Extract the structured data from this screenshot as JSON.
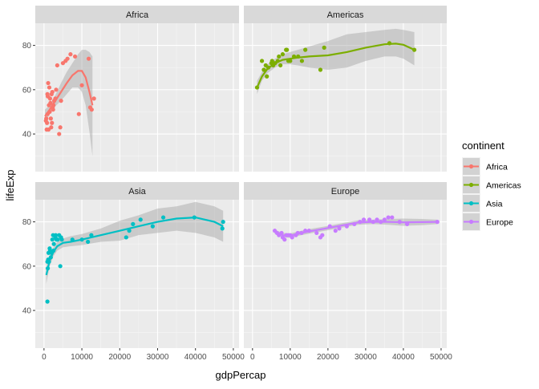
{
  "chart_data": {
    "type": "scatter",
    "title": "",
    "xlabel": "gdpPercap",
    "ylabel": "lifeExp",
    "xlim": [
      -2300,
      51500
    ],
    "ylim": [
      23,
      90
    ],
    "x_ticks": [
      0,
      10000,
      20000,
      30000,
      40000,
      50000
    ],
    "x_tick_labels": [
      "0",
      "10000",
      "20000",
      "30000",
      "40000",
      "50000"
    ],
    "y_ticks": [
      40,
      60,
      80
    ],
    "y_tick_labels": [
      "40",
      "60",
      "80"
    ],
    "grid": true,
    "smoothing": "loess with confidence band",
    "legend": {
      "title": "continent",
      "position": "right",
      "entries": [
        {
          "label": "Africa",
          "color": "#F8766D"
        },
        {
          "label": "Americas",
          "color": "#7CAE00"
        },
        {
          "label": "Asia",
          "color": "#00BFC4"
        },
        {
          "label": "Europe",
          "color": "#C77CFF"
        }
      ]
    },
    "panels": [
      {
        "name": "Africa",
        "color": "#F8766D",
        "points": [
          [
            500,
            46
          ],
          [
            600,
            47
          ],
          [
            700,
            42
          ],
          [
            800,
            45
          ],
          [
            900,
            58
          ],
          [
            950,
            49
          ],
          [
            1000,
            57
          ],
          [
            1100,
            63
          ],
          [
            1200,
            42
          ],
          [
            1300,
            53
          ],
          [
            1400,
            61
          ],
          [
            1500,
            50
          ],
          [
            1600,
            56
          ],
          [
            1700,
            54
          ],
          [
            1800,
            47
          ],
          [
            1900,
            43
          ],
          [
            2000,
            58
          ],
          [
            2100,
            45
          ],
          [
            2200,
            59
          ],
          [
            2300,
            52
          ],
          [
            2400,
            51
          ],
          [
            2500,
            53
          ],
          [
            2700,
            55
          ],
          [
            3000,
            56
          ],
          [
            3200,
            60
          ],
          [
            3500,
            71
          ],
          [
            4000,
            40
          ],
          [
            4300,
            43
          ],
          [
            4500,
            55
          ],
          [
            5000,
            72
          ],
          [
            5700,
            73
          ],
          [
            6200,
            74
          ],
          [
            7000,
            76
          ],
          [
            8200,
            75
          ],
          [
            9200,
            49
          ],
          [
            10000,
            62
          ],
          [
            11800,
            74
          ],
          [
            12200,
            52
          ],
          [
            12600,
            51
          ],
          [
            13200,
            56
          ]
        ],
        "trend": [
          [
            250,
            48
          ],
          [
            1500,
            51
          ],
          [
            3000,
            55
          ],
          [
            4500,
            59
          ],
          [
            6000,
            63
          ],
          [
            7500,
            66.5
          ],
          [
            9000,
            68.5
          ],
          [
            10000,
            68.5
          ],
          [
            11000,
            65.5
          ],
          [
            12000,
            59
          ],
          [
            12800,
            53
          ]
        ],
        "band_upper": [
          [
            250,
            51
          ],
          [
            1500,
            53
          ],
          [
            3000,
            57.5
          ],
          [
            4500,
            63
          ],
          [
            6000,
            68
          ],
          [
            7500,
            72
          ],
          [
            9000,
            76
          ],
          [
            10000,
            78
          ],
          [
            11000,
            78
          ],
          [
            12000,
            77
          ],
          [
            12800,
            75
          ]
        ],
        "band_lower": [
          [
            250,
            45
          ],
          [
            1500,
            49
          ],
          [
            3000,
            52.5
          ],
          [
            4500,
            55
          ],
          [
            6000,
            58
          ],
          [
            7500,
            61
          ],
          [
            9000,
            61
          ],
          [
            10000,
            59
          ],
          [
            11000,
            53
          ],
          [
            12000,
            41
          ],
          [
            12800,
            30
          ]
        ]
      },
      {
        "name": "Americas",
        "color": "#7CAE00",
        "points": [
          [
            1200,
            61
          ],
          [
            2500,
            73
          ],
          [
            3000,
            69
          ],
          [
            3500,
            71
          ],
          [
            3800,
            66
          ],
          [
            4200,
            70
          ],
          [
            5000,
            72
          ],
          [
            5200,
            73
          ],
          [
            5500,
            71
          ],
          [
            6000,
            72
          ],
          [
            6700,
            73
          ],
          [
            7000,
            75
          ],
          [
            7400,
            71
          ],
          [
            8000,
            76
          ],
          [
            8900,
            78
          ],
          [
            9100,
            78
          ],
          [
            9500,
            73
          ],
          [
            10000,
            73
          ],
          [
            11000,
            75
          ],
          [
            12100,
            75
          ],
          [
            13100,
            73
          ],
          [
            14000,
            78
          ],
          [
            18000,
            69
          ],
          [
            19000,
            79
          ],
          [
            36300,
            81
          ],
          [
            42900,
            78
          ]
        ],
        "trend": [
          [
            1200,
            61
          ],
          [
            2500,
            66
          ],
          [
            4000,
            69.5
          ],
          [
            6000,
            72
          ],
          [
            8000,
            73.5
          ],
          [
            10000,
            74
          ],
          [
            12000,
            74.5
          ],
          [
            15000,
            75
          ],
          [
            20000,
            75.5
          ],
          [
            25000,
            77
          ],
          [
            30000,
            79
          ],
          [
            35000,
            80.5
          ],
          [
            38000,
            80.8
          ],
          [
            40000,
            80.3
          ],
          [
            42900,
            78
          ]
        ],
        "band_upper": [
          [
            1200,
            64
          ],
          [
            2500,
            68
          ],
          [
            4000,
            71.5
          ],
          [
            6000,
            74
          ],
          [
            8000,
            76
          ],
          [
            10000,
            77
          ],
          [
            12000,
            78
          ],
          [
            15000,
            79.5
          ],
          [
            20000,
            82
          ],
          [
            25000,
            85
          ],
          [
            30000,
            86
          ],
          [
            35000,
            87
          ],
          [
            38000,
            87.5
          ],
          [
            40000,
            87
          ],
          [
            42900,
            86
          ]
        ],
        "band_lower": [
          [
            1200,
            58
          ],
          [
            2500,
            64
          ],
          [
            4000,
            67.5
          ],
          [
            6000,
            70
          ],
          [
            8000,
            71.5
          ],
          [
            10000,
            71.5
          ],
          [
            12000,
            71
          ],
          [
            15000,
            70
          ],
          [
            20000,
            69
          ],
          [
            25000,
            70
          ],
          [
            30000,
            73
          ],
          [
            35000,
            75
          ],
          [
            38000,
            75
          ],
          [
            40000,
            74
          ],
          [
            42900,
            71
          ]
        ]
      },
      {
        "name": "Asia",
        "color": "#00BFC4",
        "points": [
          [
            900,
            44
          ],
          [
            900,
            62
          ],
          [
            1000,
            59
          ],
          [
            1100,
            63
          ],
          [
            1200,
            66
          ],
          [
            1300,
            62
          ],
          [
            1500,
            68
          ],
          [
            1600,
            67
          ],
          [
            1800,
            64
          ],
          [
            2000,
            66
          ],
          [
            2200,
            72
          ],
          [
            2400,
            74
          ],
          [
            2500,
            67
          ],
          [
            2600,
            70
          ],
          [
            3000,
            73
          ],
          [
            3100,
            74
          ],
          [
            3300,
            72
          ],
          [
            3600,
            72
          ],
          [
            4000,
            74
          ],
          [
            4300,
            60
          ],
          [
            4500,
            73
          ],
          [
            4700,
            72
          ],
          [
            7500,
            72
          ],
          [
            10000,
            72
          ],
          [
            11600,
            71
          ],
          [
            12500,
            74
          ],
          [
            21700,
            73
          ],
          [
            22500,
            76
          ],
          [
            23500,
            79
          ],
          [
            25500,
            81
          ],
          [
            28700,
            78
          ],
          [
            31500,
            82
          ],
          [
            39700,
            82
          ],
          [
            47100,
            77
          ],
          [
            47300,
            80
          ]
        ],
        "trend": [
          [
            600,
            56
          ],
          [
            1500,
            62.5
          ],
          [
            2500,
            66.5
          ],
          [
            3500,
            69
          ],
          [
            5000,
            70.5
          ],
          [
            7000,
            71
          ],
          [
            10000,
            72
          ],
          [
            15000,
            74
          ],
          [
            20000,
            76
          ],
          [
            25000,
            78
          ],
          [
            30000,
            80
          ],
          [
            35000,
            81.5
          ],
          [
            40000,
            82
          ],
          [
            45000,
            80
          ],
          [
            47300,
            78
          ]
        ],
        "band_upper": [
          [
            600,
            60
          ],
          [
            1500,
            65
          ],
          [
            2500,
            68.5
          ],
          [
            3500,
            71
          ],
          [
            5000,
            72.5
          ],
          [
            7000,
            73.5
          ],
          [
            10000,
            74.5
          ],
          [
            15000,
            77
          ],
          [
            20000,
            80.5
          ],
          [
            25000,
            83
          ],
          [
            30000,
            86
          ],
          [
            35000,
            87
          ],
          [
            40000,
            89
          ],
          [
            45000,
            87
          ],
          [
            47300,
            85
          ]
        ],
        "band_lower": [
          [
            600,
            52
          ],
          [
            1500,
            60
          ],
          [
            2500,
            64.5
          ],
          [
            3500,
            67
          ],
          [
            5000,
            68.5
          ],
          [
            7000,
            69
          ],
          [
            10000,
            69.5
          ],
          [
            15000,
            71
          ],
          [
            20000,
            71.5
          ],
          [
            25000,
            74
          ],
          [
            30000,
            75
          ],
          [
            35000,
            76
          ],
          [
            40000,
            75
          ],
          [
            45000,
            73
          ],
          [
            47300,
            71
          ]
        ]
      },
      {
        "name": "Europe",
        "color": "#C77CFF",
        "points": [
          [
            5900,
            76
          ],
          [
            6500,
            75
          ],
          [
            7000,
            74
          ],
          [
            7700,
            75
          ],
          [
            8000,
            73
          ],
          [
            8500,
            72
          ],
          [
            9000,
            74
          ],
          [
            9500,
            74
          ],
          [
            10000,
            74
          ],
          [
            10500,
            73
          ],
          [
            11500,
            74
          ],
          [
            12000,
            75
          ],
          [
            13000,
            75
          ],
          [
            14000,
            76
          ],
          [
            15000,
            76
          ],
          [
            17000,
            75
          ],
          [
            18000,
            73
          ],
          [
            18500,
            74
          ],
          [
            20500,
            78
          ],
          [
            22000,
            76
          ],
          [
            23000,
            77
          ],
          [
            25000,
            78
          ],
          [
            27000,
            79
          ],
          [
            28500,
            80
          ],
          [
            29500,
            81
          ],
          [
            31000,
            81
          ],
          [
            32000,
            80
          ],
          [
            33000,
            81
          ],
          [
            34000,
            80
          ],
          [
            35000,
            81
          ],
          [
            36000,
            82
          ],
          [
            37000,
            82
          ],
          [
            39000,
            80
          ],
          [
            41000,
            79
          ],
          [
            49000,
            80
          ]
        ],
        "trend": [
          [
            5900,
            75.5
          ],
          [
            8000,
            74
          ],
          [
            10000,
            73.8
          ],
          [
            13000,
            75
          ],
          [
            16000,
            76
          ],
          [
            20000,
            77.2
          ],
          [
            24000,
            78.5
          ],
          [
            28000,
            79.7
          ],
          [
            32000,
            80
          ],
          [
            36000,
            80
          ],
          [
            40000,
            79.8
          ],
          [
            45000,
            79.9
          ],
          [
            49000,
            80
          ]
        ],
        "band_upper": [
          [
            5900,
            76.5
          ],
          [
            8000,
            75
          ],
          [
            10000,
            74.8
          ],
          [
            13000,
            76
          ],
          [
            16000,
            77
          ],
          [
            20000,
            78.2
          ],
          [
            24000,
            79.5
          ],
          [
            28000,
            80.7
          ],
          [
            32000,
            81
          ],
          [
            36000,
            81.3
          ],
          [
            40000,
            81.5
          ],
          [
            45000,
            81.3
          ],
          [
            49000,
            81
          ]
        ],
        "band_lower": [
          [
            5900,
            74.5
          ],
          [
            8000,
            73
          ],
          [
            10000,
            72.8
          ],
          [
            13000,
            74
          ],
          [
            16000,
            75
          ],
          [
            20000,
            76.2
          ],
          [
            24000,
            77.5
          ],
          [
            28000,
            78.7
          ],
          [
            32000,
            79
          ],
          [
            36000,
            78.7
          ],
          [
            40000,
            78.2
          ],
          [
            45000,
            78.5
          ],
          [
            49000,
            79
          ]
        ]
      }
    ]
  }
}
